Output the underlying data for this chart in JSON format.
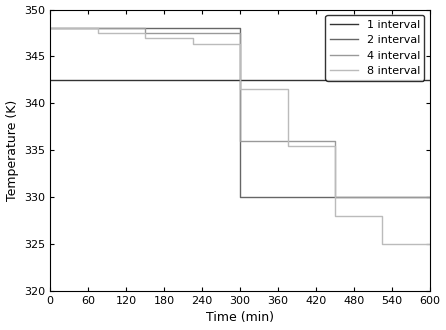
{
  "title": "",
  "xlabel": "Time (min)",
  "ylabel": "Temperature (K)",
  "xlim": [
    0,
    600
  ],
  "ylim": [
    320,
    350
  ],
  "xticks": [
    0,
    60,
    120,
    180,
    240,
    300,
    360,
    420,
    480,
    540,
    600
  ],
  "yticks": [
    320,
    325,
    330,
    335,
    340,
    345,
    350
  ],
  "series": [
    {
      "label": "1 interval",
      "color": "#333333",
      "linewidth": 1.0,
      "linestyle": "solid",
      "x": [
        0,
        600
      ],
      "y": [
        342.5,
        342.5
      ]
    },
    {
      "label": "2 interval",
      "color": "#666666",
      "linewidth": 1.0,
      "linestyle": "solid",
      "x": [
        0,
        300,
        300,
        600
      ],
      "y": [
        348.0,
        348.0,
        330.0,
        330.0
      ]
    },
    {
      "label": "4 interval",
      "color": "#999999",
      "linewidth": 1.0,
      "linestyle": "solid",
      "x": [
        0,
        150,
        150,
        300,
        300,
        450,
        450,
        600
      ],
      "y": [
        348.0,
        348.0,
        347.5,
        347.5,
        336.0,
        336.0,
        330.0,
        330.0
      ]
    },
    {
      "label": "8 interval",
      "color": "#bbbbbb",
      "linewidth": 1.0,
      "linestyle": "solid",
      "x": [
        0,
        75,
        75,
        150,
        150,
        225,
        225,
        300,
        300,
        375,
        375,
        450,
        450,
        525,
        525,
        600
      ],
      "y": [
        348.0,
        348.0,
        347.5,
        347.5,
        347.0,
        347.0,
        346.3,
        346.3,
        341.5,
        341.5,
        335.5,
        335.5,
        328.0,
        328.0,
        325.0,
        325.0
      ]
    }
  ],
  "legend_loc": "upper right",
  "background_color": "#ffffff"
}
